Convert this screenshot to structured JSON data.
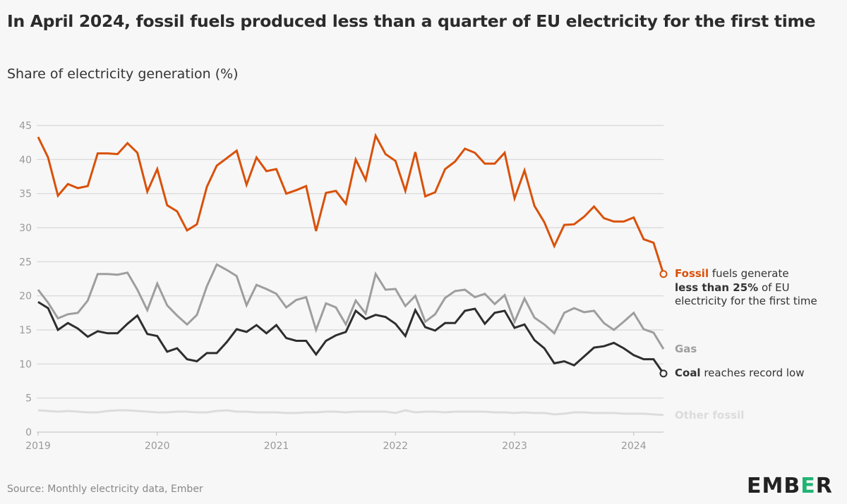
{
  "title": "In April 2024, fossil fuels produced less than a quarter of EU electricity for the first time",
  "subtitle": "Share of electricity generation (%)",
  "source": "Source: Monthly electricity data, Ember",
  "logo": {
    "part1": "EMB",
    "part2": "E",
    "part3": "R",
    "accent_color": "#20b473"
  },
  "annotations": {
    "fossil": {
      "bold": "Fossil",
      "text1": " fuels generate",
      "bold2": "less than 25%",
      "text2": " of EU",
      "text3": "electricity for the first time"
    },
    "gas": "Gas",
    "coal": {
      "bold": "Coal",
      "text": " reaches record low"
    },
    "other": "Other fossil"
  },
  "chart_data": {
    "type": "line",
    "title": "In April 2024, fossil fuels produced less than a quarter of EU electricity for the first time",
    "ylabel": "Share of electricity generation (%)",
    "x_start": "2019-01",
    "x_end": "2024-04",
    "x_frequency": "monthly",
    "x_ticks": [
      "2019",
      "2020",
      "2021",
      "2022",
      "2023",
      "2024"
    ],
    "y_ticks": [
      0,
      5,
      10,
      15,
      20,
      25,
      30,
      35,
      40,
      45
    ],
    "ylim": [
      0,
      45
    ],
    "grid": true,
    "series": [
      {
        "name": "Fossil",
        "color": "#d9510a",
        "end_marker": true,
        "values": [
          43.3,
          40.3,
          34.7,
          36.4,
          35.8,
          36.1,
          40.9,
          40.9,
          40.8,
          42.4,
          41.0,
          35.3,
          38.6,
          33.3,
          32.4,
          29.6,
          30.5,
          36.0,
          39.1,
          40.2,
          41.3,
          36.3,
          40.3,
          38.3,
          38.6,
          35.0,
          35.5,
          36.1,
          29.5,
          35.1,
          35.4,
          33.5,
          40.0,
          37.0,
          43.5,
          40.8,
          39.8,
          35.4,
          41.1,
          34.6,
          35.2,
          38.6,
          39.7,
          41.6,
          41.0,
          39.4,
          39.4,
          41.0,
          34.3,
          38.4,
          33.2,
          30.8,
          27.3,
          30.4,
          30.5,
          31.6,
          33.1,
          31.4,
          30.9,
          30.9,
          31.5,
          28.3,
          27.8,
          23.2
        ]
      },
      {
        "name": "Gas",
        "color": "#9e9e9e",
        "end_marker": false,
        "values": [
          20.9,
          19.0,
          16.7,
          17.3,
          17.5,
          19.3,
          23.2,
          23.2,
          23.1,
          23.4,
          20.9,
          17.9,
          21.8,
          18.6,
          17.1,
          15.8,
          17.2,
          21.4,
          24.6,
          23.8,
          22.9,
          18.6,
          21.6,
          21.0,
          20.3,
          18.3,
          19.4,
          19.8,
          15.0,
          18.9,
          18.3,
          15.8,
          19.3,
          17.4,
          23.2,
          20.9,
          21.0,
          18.5,
          20.0,
          16.2,
          17.3,
          19.7,
          20.7,
          20.9,
          19.8,
          20.3,
          18.8,
          20.1,
          16.2,
          19.6,
          16.8,
          15.8,
          14.5,
          17.5,
          18.2,
          17.6,
          17.8,
          16.0,
          15.0,
          16.2,
          17.5,
          15.1,
          14.6,
          12.2
        ]
      },
      {
        "name": "Coal",
        "color": "#2e2e2e",
        "end_marker": true,
        "values": [
          19.1,
          18.2,
          15.0,
          16.0,
          15.2,
          14.0,
          14.8,
          14.5,
          14.5,
          15.9,
          17.1,
          14.4,
          14.1,
          11.8,
          12.3,
          10.7,
          10.4,
          11.6,
          11.6,
          13.2,
          15.1,
          14.7,
          15.7,
          14.5,
          15.7,
          13.8,
          13.4,
          13.4,
          11.4,
          13.4,
          14.2,
          14.7,
          17.8,
          16.6,
          17.2,
          16.9,
          15.9,
          14.1,
          17.9,
          15.4,
          14.9,
          16.0,
          16.0,
          17.8,
          18.1,
          15.9,
          17.5,
          17.8,
          15.3,
          15.8,
          13.5,
          12.3,
          10.1,
          10.4,
          9.8,
          11.1,
          12.4,
          12.6,
          13.1,
          12.3,
          11.3,
          10.7,
          10.7,
          8.6
        ]
      },
      {
        "name": "Other fossil",
        "color": "#dcdcdc",
        "end_marker": false,
        "values": [
          3.2,
          3.1,
          3.0,
          3.1,
          3.0,
          2.9,
          2.9,
          3.1,
          3.2,
          3.2,
          3.1,
          3.0,
          2.9,
          2.9,
          3.0,
          3.0,
          2.9,
          2.9,
          3.1,
          3.2,
          3.0,
          3.0,
          2.9,
          2.9,
          2.9,
          2.8,
          2.8,
          2.9,
          2.9,
          3.0,
          3.0,
          2.9,
          3.0,
          3.0,
          3.0,
          3.0,
          2.8,
          3.2,
          2.9,
          3.0,
          3.0,
          2.9,
          3.0,
          3.0,
          3.0,
          3.0,
          2.9,
          2.9,
          2.8,
          2.9,
          2.8,
          2.8,
          2.6,
          2.7,
          2.9,
          2.9,
          2.8,
          2.8,
          2.8,
          2.7,
          2.7,
          2.7,
          2.6,
          2.5
        ]
      }
    ]
  }
}
